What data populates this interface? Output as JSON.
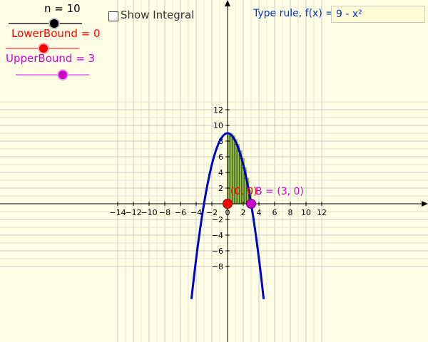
{
  "sliders": {
    "n": {
      "label": "n = 10",
      "value": 10,
      "min": 1,
      "max": 20,
      "color": "#000000"
    },
    "lower": {
      "label": "LowerBound = 0",
      "value": 0,
      "min": -10,
      "max": 5,
      "color": "#ff0000"
    },
    "upper": {
      "label": "UpperBound = 3",
      "value": 3,
      "min": -5,
      "max": 10,
      "color": "#cc00cc"
    }
  },
  "show_integral": {
    "label": "Show Integral",
    "checked": false
  },
  "function_input": {
    "label": "Type rule, f(x) =",
    "value": "9 - x²"
  },
  "points": {
    "A": {
      "label": "(0, 0)",
      "x": 0,
      "y": 0,
      "color": "#ff0000"
    },
    "B": {
      "label": "B = (3, 0)",
      "x": 3,
      "y": 0,
      "color": "#cc00cc"
    }
  },
  "chart_data": {
    "type": "line",
    "function": "9 - x^2",
    "xlim": [
      -14.5,
      12.5
    ],
    "ylim": [
      -8.5,
      13
    ],
    "x_ticks": [
      -14,
      -12,
      -10,
      -8,
      -6,
      -4,
      -2,
      0,
      2,
      4,
      6,
      8,
      10,
      12
    ],
    "y_ticks": [
      -8,
      -6,
      -4,
      -2,
      2,
      4,
      6,
      8,
      10,
      12
    ],
    "grid": true,
    "rectangles": {
      "n": 10,
      "a": 0,
      "b": 3,
      "upper_heights": [
        9,
        8.91,
        8.64,
        8.19,
        7.56,
        6.75,
        5.76,
        4.59,
        3.24,
        1.71
      ],
      "lower_heights": [
        8.91,
        8.64,
        8.19,
        7.56,
        6.75,
        5.76,
        4.59,
        3.24,
        1.71,
        0
      ]
    },
    "colors": {
      "curve": "#0000cc",
      "rect_fill": "#7a9a4a",
      "rect_upper_stroke": "#99cc00",
      "rect_lower_stroke": "#336600"
    }
  }
}
